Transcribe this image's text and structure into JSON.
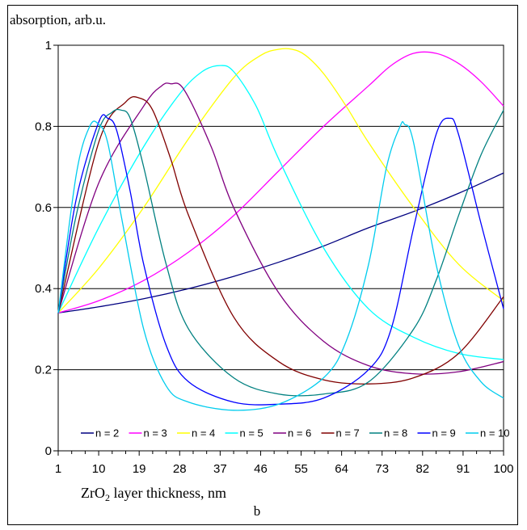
{
  "figure_label": "b",
  "chart_data": {
    "type": "line",
    "ylabel": "absorption, arb.u.",
    "xlabel_prefix": "ZrO",
    "xlabel_sub": "2",
    "xlabel_suffix": " layer thickness, nm",
    "xlim": [
      1,
      100
    ],
    "ylim": [
      0,
      1
    ],
    "x_ticks": [
      1,
      10,
      19,
      28,
      37,
      46,
      55,
      64,
      73,
      82,
      91,
      100
    ],
    "y_ticks": [
      0,
      0.2,
      0.4,
      0.6,
      0.8,
      1
    ],
    "y_tick_labels": [
      "0",
      "0.2",
      "0.4",
      "0.6",
      "0.8",
      "1"
    ],
    "grid": "horizontal",
    "legend_position": "bottom",
    "series": [
      {
        "name": "n = 2",
        "color": "#000080",
        "x": [
          1,
          10,
          20,
          30,
          40,
          50,
          60,
          70,
          80,
          90,
          100
        ],
        "y": [
          0.34,
          0.355,
          0.375,
          0.4,
          0.43,
          0.465,
          0.505,
          0.55,
          0.59,
          0.635,
          0.685
        ]
      },
      {
        "name": "n = 3",
        "color": "#ff00ff",
        "x": [
          1,
          10,
          20,
          30,
          40,
          50,
          60,
          70,
          75,
          80,
          85,
          90,
          95,
          100
        ],
        "y": [
          0.34,
          0.37,
          0.42,
          0.49,
          0.58,
          0.69,
          0.8,
          0.9,
          0.95,
          0.98,
          0.98,
          0.955,
          0.91,
          0.85
        ]
      },
      {
        "name": "n = 4",
        "color": "#ffff00",
        "x": [
          1,
          10,
          20,
          30,
          40,
          46,
          50,
          53,
          56,
          60,
          65,
          70,
          80,
          90,
          100
        ],
        "y": [
          0.34,
          0.45,
          0.6,
          0.77,
          0.92,
          0.975,
          0.99,
          0.99,
          0.975,
          0.93,
          0.85,
          0.76,
          0.6,
          0.46,
          0.37
        ]
      },
      {
        "name": "n = 5",
        "color": "#00ffff",
        "x": [
          1,
          10,
          20,
          28,
          33,
          37,
          40,
          45,
          50,
          60,
          70,
          80,
          90,
          100
        ],
        "y": [
          0.34,
          0.55,
          0.75,
          0.88,
          0.935,
          0.95,
          0.935,
          0.85,
          0.72,
          0.5,
          0.35,
          0.28,
          0.24,
          0.225
        ]
      },
      {
        "name": "n = 6",
        "color": "#800080",
        "x": [
          1,
          10,
          20,
          24,
          26,
          29,
          35,
          40,
          50,
          60,
          70,
          80,
          90,
          100
        ],
        "y": [
          0.34,
          0.66,
          0.85,
          0.9,
          0.905,
          0.89,
          0.75,
          0.6,
          0.39,
          0.27,
          0.21,
          0.19,
          0.195,
          0.22
        ]
      },
      {
        "name": "n = 7",
        "color": "#800000",
        "x": [
          1,
          10,
          16,
          19,
          22,
          26,
          30,
          40,
          50,
          60,
          70,
          80,
          90,
          100
        ],
        "y": [
          0.34,
          0.76,
          0.86,
          0.87,
          0.84,
          0.72,
          0.58,
          0.33,
          0.22,
          0.175,
          0.165,
          0.18,
          0.24,
          0.38
        ]
      },
      {
        "name": "n = 8",
        "color": "#008080",
        "x": [
          1,
          5,
          10,
          13,
          15,
          17,
          20,
          25,
          30,
          40,
          50,
          60,
          70,
          80,
          85,
          90,
          95,
          100
        ],
        "y": [
          0.34,
          0.58,
          0.79,
          0.835,
          0.84,
          0.82,
          0.7,
          0.46,
          0.3,
          0.18,
          0.14,
          0.14,
          0.17,
          0.3,
          0.42,
          0.58,
          0.73,
          0.84
        ]
      },
      {
        "name": "n = 9",
        "color": "#0000ff",
        "x": [
          1,
          5,
          10,
          12,
          14,
          17,
          20,
          25,
          30,
          40,
          50,
          60,
          70,
          75,
          80,
          85,
          88,
          90,
          95,
          100
        ],
        "y": [
          0.34,
          0.62,
          0.81,
          0.82,
          0.79,
          0.64,
          0.46,
          0.26,
          0.17,
          0.12,
          0.115,
          0.13,
          0.2,
          0.3,
          0.55,
          0.78,
          0.82,
          0.78,
          0.56,
          0.35
        ]
      },
      {
        "name": "n = 10",
        "color": "#00ccee",
        "x": [
          1,
          5,
          8,
          10,
          12,
          15,
          20,
          25,
          30,
          40,
          50,
          60,
          65,
          70,
          74,
          77,
          78,
          80,
          85,
          90,
          95,
          100
        ],
        "y": [
          0.34,
          0.68,
          0.8,
          0.805,
          0.76,
          0.58,
          0.3,
          0.16,
          0.12,
          0.1,
          0.115,
          0.18,
          0.27,
          0.46,
          0.7,
          0.8,
          0.805,
          0.76,
          0.46,
          0.26,
          0.17,
          0.13
        ]
      }
    ]
  }
}
